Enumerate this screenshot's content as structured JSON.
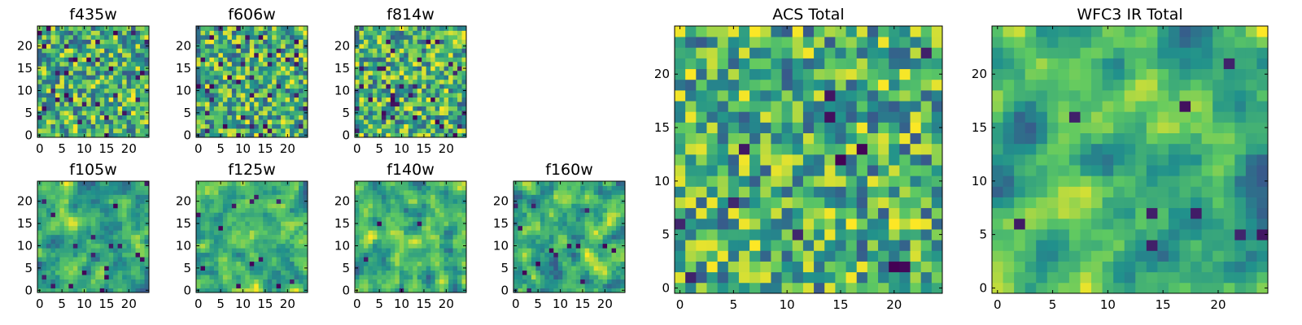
{
  "chart_data": [
    {
      "type": "heatmap",
      "title": "f435w",
      "xticks": [
        "0",
        "5",
        "10",
        "15",
        "20"
      ],
      "yticks": [
        "0",
        "5",
        "10",
        "15",
        "20"
      ],
      "xlim": [
        -0.5,
        24.5
      ],
      "ylim": [
        -0.5,
        24.5
      ],
      "grid_size": 25,
      "seed": 11,
      "smooth": 0,
      "dark_frac": 0.05,
      "colormap": "viridis"
    },
    {
      "type": "heatmap",
      "title": "f606w",
      "xticks": [
        "0",
        "5",
        "10",
        "15",
        "20"
      ],
      "yticks": [
        "0",
        "5",
        "10",
        "15",
        "20"
      ],
      "xlim": [
        -0.5,
        24.5
      ],
      "ylim": [
        -0.5,
        24.5
      ],
      "grid_size": 25,
      "seed": 23,
      "smooth": 0,
      "dark_frac": 0.06,
      "colormap": "viridis"
    },
    {
      "type": "heatmap",
      "title": "f814w",
      "xticks": [
        "0",
        "5",
        "10",
        "15",
        "20"
      ],
      "yticks": [
        "0",
        "5",
        "10",
        "15",
        "20"
      ],
      "xlim": [
        -0.5,
        24.5
      ],
      "ylim": [
        -0.5,
        24.5
      ],
      "grid_size": 25,
      "seed": 37,
      "smooth": 0,
      "dark_frac": 0.05,
      "colormap": "viridis"
    },
    {
      "type": "heatmap",
      "title": "f105w",
      "xticks": [
        "0",
        "5",
        "10",
        "15",
        "20"
      ],
      "yticks": [
        "0",
        "5",
        "10",
        "15",
        "20"
      ],
      "xlim": [
        -0.5,
        24.5
      ],
      "ylim": [
        -0.5,
        24.5
      ],
      "grid_size": 25,
      "seed": 41,
      "smooth": 1,
      "dark_frac": 0.02,
      "colormap": "viridis"
    },
    {
      "type": "heatmap",
      "title": "f125w",
      "xticks": [
        "0",
        "5",
        "10",
        "15",
        "20"
      ],
      "yticks": [
        "0",
        "5",
        "10",
        "15",
        "20"
      ],
      "xlim": [
        -0.5,
        24.5
      ],
      "ylim": [
        -0.5,
        24.5
      ],
      "grid_size": 25,
      "seed": 53,
      "smooth": 1,
      "dark_frac": 0.02,
      "colormap": "viridis"
    },
    {
      "type": "heatmap",
      "title": "f140w",
      "xticks": [
        "0",
        "5",
        "10",
        "15",
        "20"
      ],
      "yticks": [
        "0",
        "5",
        "10",
        "15",
        "20"
      ],
      "xlim": [
        -0.5,
        24.5
      ],
      "ylim": [
        -0.5,
        24.5
      ],
      "grid_size": 25,
      "seed": 67,
      "smooth": 1,
      "dark_frac": 0.01,
      "colormap": "viridis"
    },
    {
      "type": "heatmap",
      "title": "f160w",
      "xticks": [
        "0",
        "5",
        "10",
        "15",
        "20"
      ],
      "yticks": [
        "0",
        "5",
        "10",
        "15",
        "20"
      ],
      "xlim": [
        -0.5,
        24.5
      ],
      "ylim": [
        -0.5,
        24.5
      ],
      "grid_size": 25,
      "seed": 79,
      "smooth": 1,
      "dark_frac": 0.02,
      "colormap": "viridis"
    },
    {
      "type": "heatmap",
      "title": "ACS Total",
      "xticks": [
        "0",
        "5",
        "10",
        "15",
        "20"
      ],
      "yticks": [
        "0",
        "5",
        "10",
        "15",
        "20"
      ],
      "xlim": [
        -0.5,
        24.5
      ],
      "ylim": [
        -0.5,
        24.5
      ],
      "grid_size": 25,
      "seed": 97,
      "smooth": 0,
      "dark_frac": 0.025,
      "colormap": "viridis"
    },
    {
      "type": "heatmap",
      "title": "WFC3 IR Total",
      "xticks": [
        "0",
        "5",
        "10",
        "15",
        "20"
      ],
      "yticks": [
        "0",
        "5",
        "10",
        "15",
        "20"
      ],
      "xlim": [
        -0.5,
        24.5
      ],
      "ylim": [
        -0.5,
        24.5
      ],
      "grid_size": 25,
      "seed": 113,
      "smooth": 2,
      "dark_frac": 0.02,
      "colormap": "viridis"
    }
  ],
  "colors": {
    "viridis": [
      "#440154",
      "#3b528b",
      "#21918c",
      "#5ec962",
      "#fde725"
    ]
  }
}
